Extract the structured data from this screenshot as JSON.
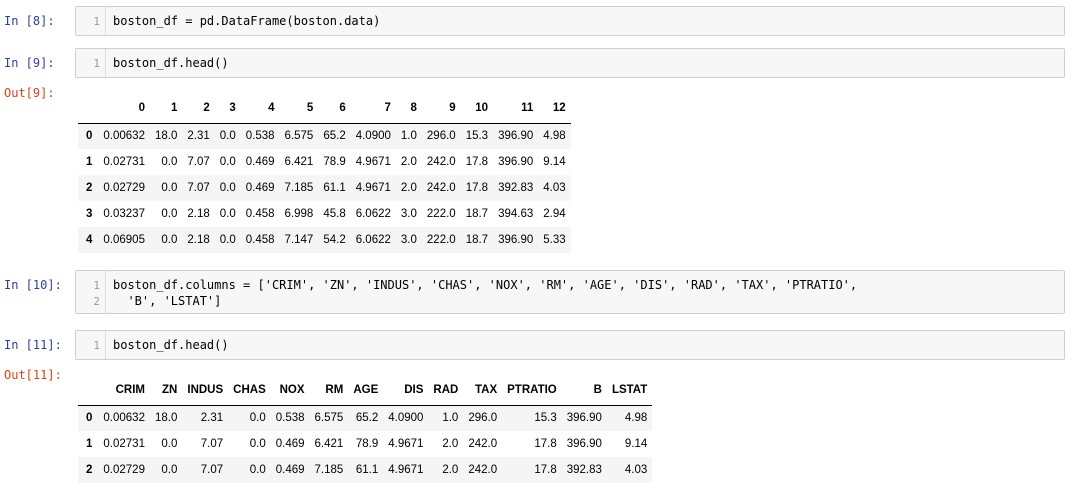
{
  "cells": [
    {
      "prompt": "In [8]:",
      "lines": [
        {
          "no": "1",
          "code": "boston_df = pd.DataFrame(boston.data)"
        }
      ]
    },
    {
      "prompt": "In [9]:",
      "lines": [
        {
          "no": "1",
          "code": "boston_df.head()"
        }
      ],
      "out_prompt": "Out[9]:"
    },
    {
      "prompt": "In [10]:",
      "lines": [
        {
          "no": "1",
          "code": "boston_df.columns = ['CRIM', 'ZN', 'INDUS', 'CHAS', 'NOX', 'RM', 'AGE', 'DIS', 'RAD', 'TAX', 'PTRATIO',"
        },
        {
          "no": "2",
          "code": "  'B', 'LSTAT']"
        }
      ]
    },
    {
      "prompt": "In [11]:",
      "lines": [
        {
          "no": "1",
          "code": "boston_df.head()"
        }
      ],
      "out_prompt": "Out[11]:"
    }
  ],
  "table1": {
    "columns": [
      "",
      "0",
      "1",
      "2",
      "3",
      "4",
      "5",
      "6",
      "7",
      "8",
      "9",
      "10",
      "11",
      "12"
    ],
    "rows": [
      [
        "0",
        "0.00632",
        "18.0",
        "2.31",
        "0.0",
        "0.538",
        "6.575",
        "65.2",
        "4.0900",
        "1.0",
        "296.0",
        "15.3",
        "396.90",
        "4.98"
      ],
      [
        "1",
        "0.02731",
        "0.0",
        "7.07",
        "0.0",
        "0.469",
        "6.421",
        "78.9",
        "4.9671",
        "2.0",
        "242.0",
        "17.8",
        "396.90",
        "9.14"
      ],
      [
        "2",
        "0.02729",
        "0.0",
        "7.07",
        "0.0",
        "0.469",
        "7.185",
        "61.1",
        "4.9671",
        "2.0",
        "242.0",
        "17.8",
        "392.83",
        "4.03"
      ],
      [
        "3",
        "0.03237",
        "0.0",
        "2.18",
        "0.0",
        "0.458",
        "6.998",
        "45.8",
        "6.0622",
        "3.0",
        "222.0",
        "18.7",
        "394.63",
        "2.94"
      ],
      [
        "4",
        "0.06905",
        "0.0",
        "2.18",
        "0.0",
        "0.458",
        "7.147",
        "54.2",
        "6.0622",
        "3.0",
        "222.0",
        "18.7",
        "396.90",
        "5.33"
      ]
    ]
  },
  "table2": {
    "columns": [
      "",
      "CRIM",
      "ZN",
      "INDUS",
      "CHAS",
      "NOX",
      "RM",
      "AGE",
      "DIS",
      "RAD",
      "TAX",
      "PTRATIO",
      "B",
      "LSTAT"
    ],
    "rows": [
      [
        "0",
        "0.00632",
        "18.0",
        "2.31",
        "0.0",
        "0.538",
        "6.575",
        "65.2",
        "4.0900",
        "1.0",
        "296.0",
        "15.3",
        "396.90",
        "4.98"
      ],
      [
        "1",
        "0.02731",
        "0.0",
        "7.07",
        "0.0",
        "0.469",
        "6.421",
        "78.9",
        "4.9671",
        "2.0",
        "242.0",
        "17.8",
        "396.90",
        "9.14"
      ],
      [
        "2",
        "0.02729",
        "0.0",
        "7.07",
        "0.0",
        "0.469",
        "7.185",
        "61.1",
        "4.9671",
        "2.0",
        "242.0",
        "17.8",
        "392.83",
        "4.03"
      ]
    ]
  }
}
